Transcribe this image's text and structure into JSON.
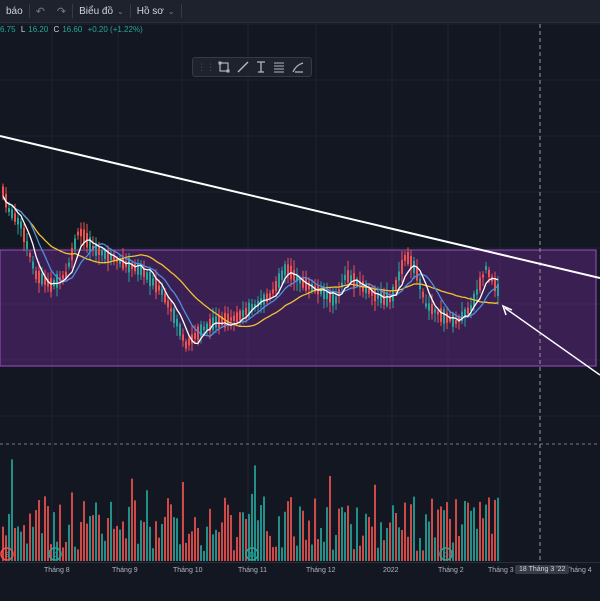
{
  "toolbar": {
    "left_fragment": "báo",
    "undo_icon": "undo-icon",
    "redo_icon": "redo-icon",
    "chart_menu_label": "Biểu đồ",
    "profile_menu_label": "Hồ sơ",
    "dropdown_icon": "chevron-down-icon"
  },
  "ohlc": {
    "open_fragment": "6.75",
    "low_label": "L",
    "low": "16.20",
    "close_label": "C",
    "close": "16.60",
    "change": "+0.20 (+1.22%)"
  },
  "drawing_toolbar": {
    "tools": [
      "drag-handle-icon",
      "rectangle-icon",
      "trend-line-icon",
      "text-cursor-icon",
      "fib-retracement-icon",
      "brush-icon"
    ]
  },
  "time_axis": {
    "labels": [
      "Tháng 8",
      "Tháng 9",
      "Tháng 10",
      "Tháng 11",
      "Tháng 12",
      "2022",
      "Tháng 2",
      "Tháng 3",
      "Tháng 4"
    ],
    "cursor_date": "18 Tháng 3 '22"
  },
  "colors": {
    "background": "#131722",
    "up": "#26a69a",
    "down": "#ef5350",
    "zone_fill": "#6a2a8e",
    "ma_white": "#ffffff",
    "ma_blue": "#4f8fe0",
    "ma_yellow": "#f2c230"
  },
  "chart_data": {
    "type": "candlestick",
    "overlays": [
      "white-ma",
      "blue-ma",
      "yellow-ma",
      "resistance-trendline",
      "purple-range-box",
      "arrow-annotation"
    ],
    "volume_histogram": true,
    "event_markers": [
      "S",
      "D",
      "D",
      "D"
    ]
  }
}
